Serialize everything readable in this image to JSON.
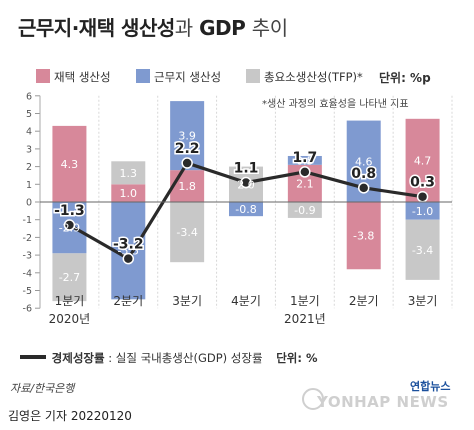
{
  "title": {
    "main": "근무지·재택 생산성",
    "connector": "과",
    "gdp": "GDP",
    "suffix": "추이"
  },
  "legend": {
    "items": [
      {
        "name": "재택 생산성",
        "color": "#d7889a"
      },
      {
        "name": "근무지 생산성",
        "color": "#7f9ad0"
      },
      {
        "name": "총요소생산성(TFP)*",
        "color": "#c8c8c8"
      }
    ],
    "unit": "단위: %p",
    "note": "*생산 과정의 효율성을 나타낸 지표"
  },
  "bottom_legend": {
    "label": "경제성장률",
    "desc": ": 실질 국내총생산(GDP) 성장률",
    "unit": "단위: %"
  },
  "source": "자료/한국은행",
  "credit": "김영은 기자  20220120",
  "logo": {
    "kr": "연합뉴스",
    "en": "YONHAP NEWS"
  },
  "chart_data": {
    "type": "bar",
    "categories": [
      "1분기",
      "2분기",
      "3분기",
      "4분기",
      "1분기",
      "2분기",
      "3분기"
    ],
    "year_labels": [
      {
        "index": 0,
        "label": "2020년"
      },
      {
        "index": 4,
        "label": "2021년"
      }
    ],
    "ylim": [
      -6,
      6
    ],
    "yticks": [
      -6,
      -5,
      -4,
      -3,
      -2,
      -1,
      0,
      1,
      2,
      3,
      4,
      5,
      6
    ],
    "grid": true,
    "series": [
      {
        "name": "재택 생산성",
        "values": [
          4.3,
          1.0,
          1.8,
          0.0,
          2.1,
          -3.8,
          4.7
        ],
        "labels": [
          "4.3",
          "1.0",
          "1.8",
          "",
          "2.1",
          "-3.8",
          "4.7"
        ],
        "color": "#d7889a"
      },
      {
        "name": "근무지 생산성",
        "values": [
          -2.9,
          -5.5,
          3.9,
          -0.8,
          0.5,
          4.6,
          -1.0
        ],
        "labels": [
          "-2.9",
          "-5.5",
          "3.9",
          "-0.8",
          "0.5",
          "4.6",
          "-1.0"
        ],
        "color": "#7f9ad0"
      },
      {
        "name": "총요소생산성(TFP)*",
        "values": [
          -2.7,
          1.3,
          -3.4,
          2.0,
          -0.9,
          0.0,
          -3.4
        ],
        "labels": [
          "-2.7",
          "1.3",
          "-3.4",
          "2.0",
          "-0.9",
          "",
          "-3.4"
        ],
        "color": "#c8c8c8"
      }
    ],
    "line": {
      "name": "경제성장률",
      "values": [
        -1.3,
        -3.2,
        2.2,
        1.1,
        1.7,
        0.8,
        0.3
      ],
      "labels": [
        "-1.3",
        "-3.2",
        "2.2",
        "1.1",
        "1.7",
        "0.8",
        "0.3"
      ],
      "color": "#2a2a2a"
    }
  }
}
